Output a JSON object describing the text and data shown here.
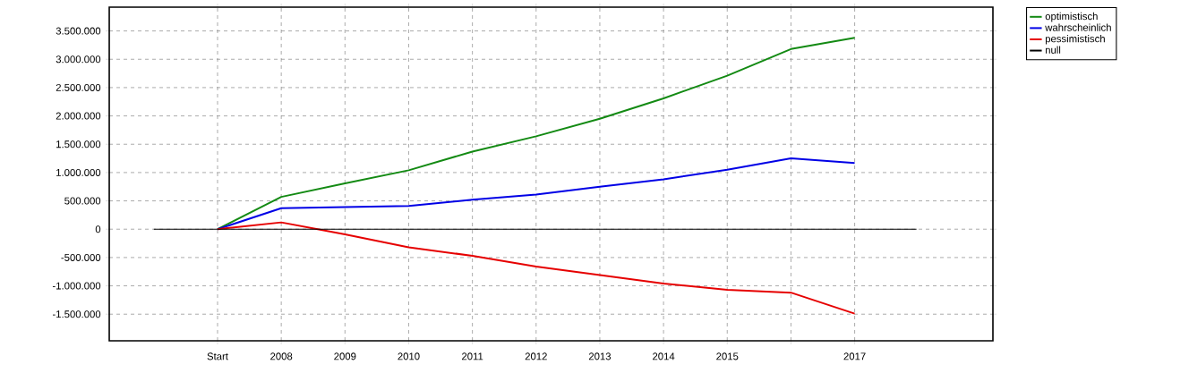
{
  "chart_data": {
    "type": "line",
    "categories": [
      "Start",
      "2008",
      "2009",
      "2010",
      "2011",
      "2012",
      "2013",
      "2014",
      "2015",
      null,
      "2017"
    ],
    "series": [
      {
        "name": "optimistisch",
        "color": "#138a13",
        "values": [
          0,
          570000,
          810000,
          1040000,
          1370000,
          1640000,
          1950000,
          2310000,
          2710000,
          3180000,
          3380000
        ]
      },
      {
        "name": "wahrscheinlich",
        "color": "#0000e6",
        "values": [
          0,
          370000,
          390000,
          410000,
          520000,
          610000,
          750000,
          880000,
          1050000,
          1250000,
          1170000
        ]
      },
      {
        "name": "pessimistisch",
        "color": "#e60000",
        "values": [
          0,
          120000,
          -90000,
          -320000,
          -470000,
          -660000,
          -810000,
          -960000,
          -1070000,
          -1120000,
          -1490000
        ]
      }
    ],
    "ref_lines": [
      {
        "axis": "y",
        "value": 0,
        "label": "null",
        "color": "#000000"
      }
    ],
    "ylim": [
      -1970000,
      3920000
    ],
    "yticks": [
      {
        "value": -1500000,
        "label": "-1.500.000"
      },
      {
        "value": -1000000,
        "label": "-1.000.000"
      },
      {
        "value": -500000,
        "label": "-500.000"
      },
      0,
      {
        "value": 500000,
        "label": "500.000"
      },
      {
        "value": 1000000,
        "label": "1.000.000"
      },
      {
        "value": 1500000,
        "label": "1.500.000"
      },
      {
        "value": 2000000,
        "label": "2.000.000"
      },
      {
        "value": 2500000,
        "label": "2.500.000"
      },
      {
        "value": 3000000,
        "label": "3.000.000"
      },
      {
        "value": 3500000,
        "label": "3.500.000"
      }
    ],
    "grid": true,
    "legend": "top right",
    "marker": "none",
    "line_style": "solid"
  }
}
